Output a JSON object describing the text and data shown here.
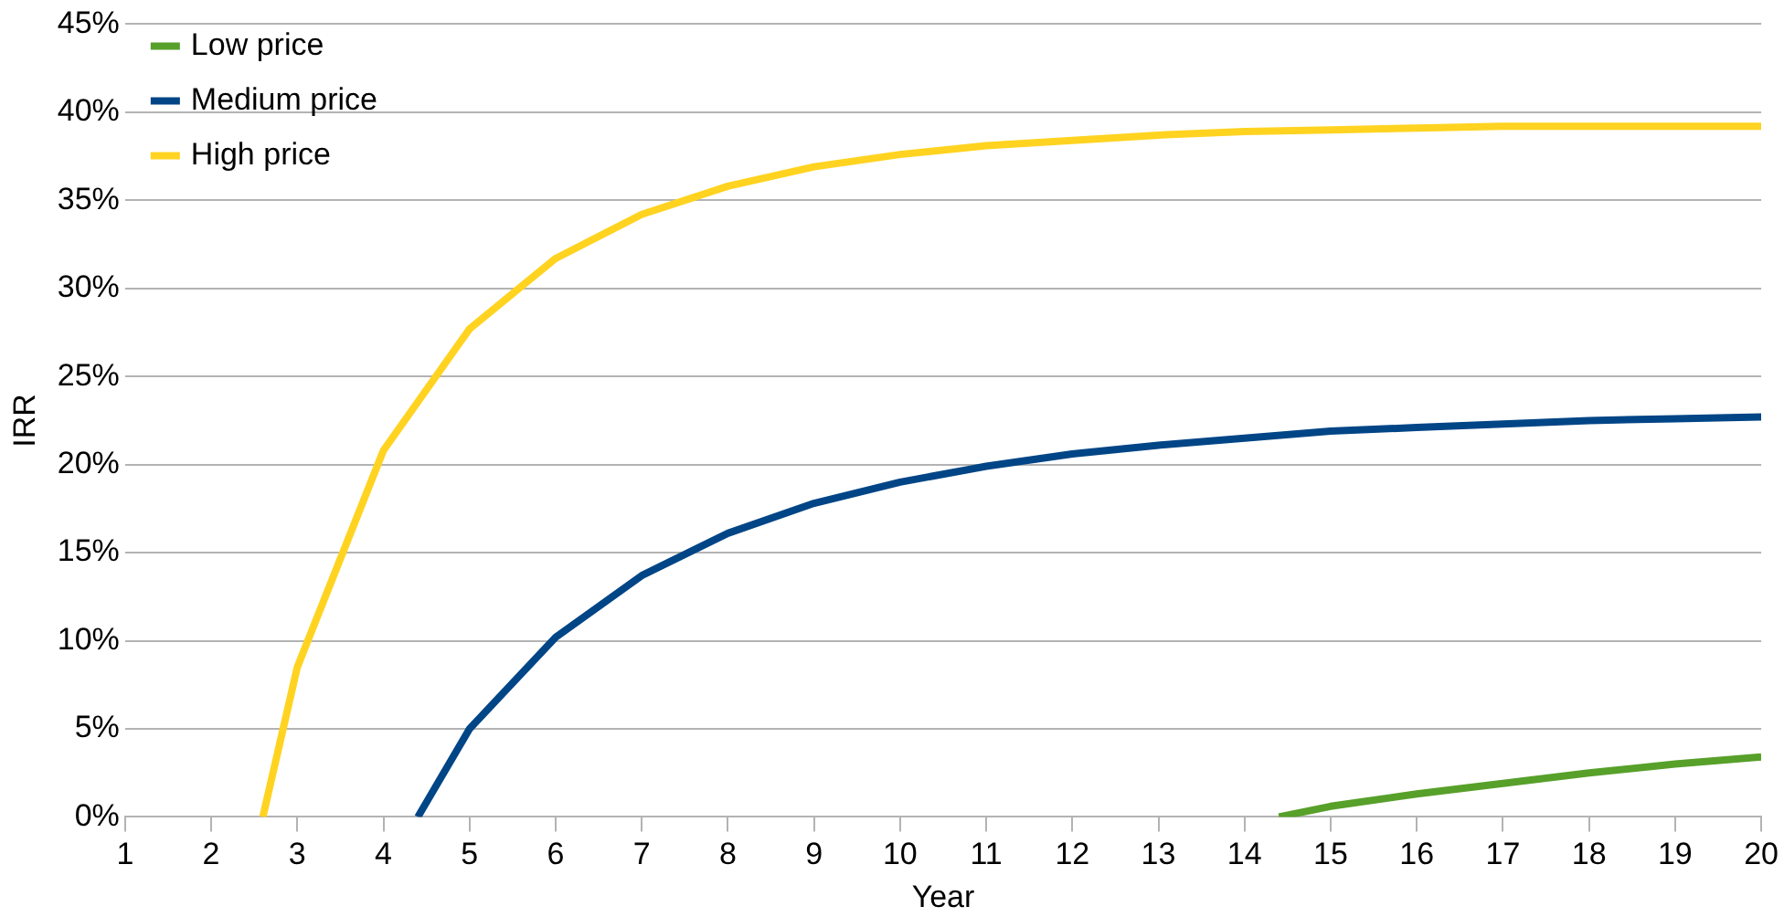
{
  "chart_data": {
    "type": "line",
    "xlabel": "Year",
    "ylabel": "IRR",
    "xlim": [
      1,
      20
    ],
    "xticks": [
      1,
      2,
      3,
      4,
      5,
      6,
      7,
      8,
      9,
      10,
      11,
      12,
      13,
      14,
      15,
      16,
      17,
      18,
      19,
      20
    ],
    "ylim": [
      0,
      45
    ],
    "yticks": [
      {
        "value": 0,
        "label": "0%"
      },
      {
        "value": 5,
        "label": "5%"
      },
      {
        "value": 10,
        "label": "10%"
      },
      {
        "value": 15,
        "label": "15%"
      },
      {
        "value": 20,
        "label": "20%"
      },
      {
        "value": 25,
        "label": "25%"
      },
      {
        "value": 30,
        "label": "30%"
      },
      {
        "value": 35,
        "label": "35%"
      },
      {
        "value": 40,
        "label": "40%"
      },
      {
        "value": 45,
        "label": "45%"
      }
    ],
    "grid": "y",
    "legend": "top left",
    "marker": "none",
    "line_style": "solid",
    "series": [
      {
        "name": "Low price",
        "color": "#57a02a",
        "x": [
          14.4,
          15,
          16,
          17,
          18,
          19,
          20
        ],
        "values": [
          0,
          0.6,
          1.3,
          1.9,
          2.5,
          3.0,
          3.4
        ]
      },
      {
        "name": "Medium price",
        "color": "#004586",
        "x": [
          4.4,
          5,
          6,
          7,
          8,
          9,
          10,
          11,
          12,
          13,
          14,
          15,
          16,
          17,
          18,
          19,
          20
        ],
        "values": [
          0,
          5.0,
          10.2,
          13.7,
          16.1,
          17.8,
          19.0,
          19.9,
          20.6,
          21.1,
          21.5,
          21.9,
          22.1,
          22.3,
          22.5,
          22.6,
          22.7
        ]
      },
      {
        "name": "High price",
        "color": "#ffd320",
        "x": [
          2.6,
          3,
          4,
          5,
          6,
          7,
          8,
          9,
          10,
          11,
          12,
          13,
          14,
          15,
          16,
          17,
          18,
          19,
          20
        ],
        "values": [
          0,
          8.5,
          20.8,
          27.7,
          31.7,
          34.2,
          35.8,
          36.9,
          37.6,
          38.1,
          38.4,
          38.7,
          38.9,
          39.0,
          39.1,
          39.2,
          39.2,
          39.2,
          39.2
        ]
      }
    ]
  }
}
